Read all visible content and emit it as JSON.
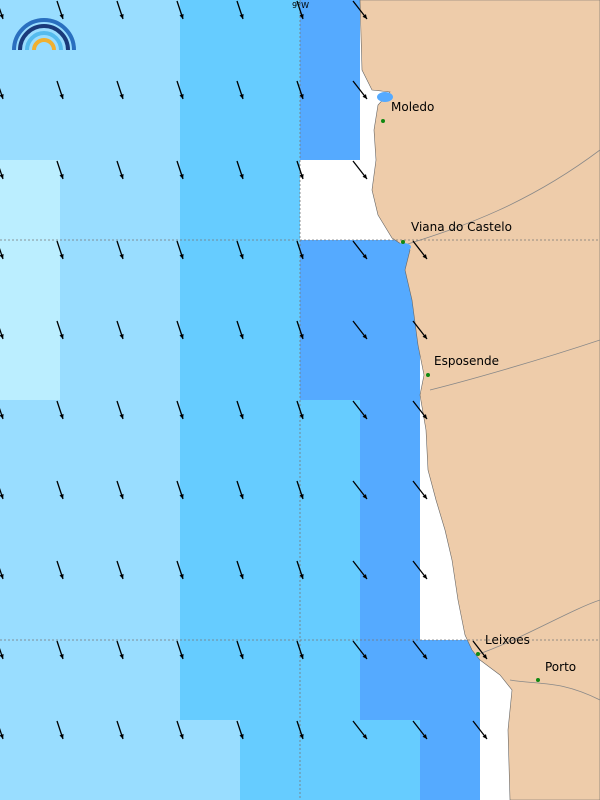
{
  "map": {
    "longitude_label": "9°W",
    "places": [
      {
        "name": "Moledo"
      },
      {
        "name": "Viana do Castelo"
      },
      {
        "name": "Esposende"
      },
      {
        "name": "Leixoes"
      },
      {
        "name": "Porto"
      }
    ]
  }
}
